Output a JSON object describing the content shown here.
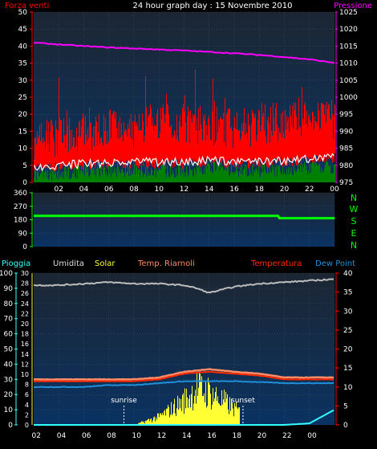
{
  "header": {
    "left_label": "Forza venti",
    "title": "24 hour graph day : 15 Novembre 2010",
    "right_label": "Pressione"
  },
  "legend": {
    "rain": "Pioggia",
    "humidity": "Umidita",
    "solar": "Solar",
    "temp2": "Temp. Riarnoli",
    "temperature": "Temperatura",
    "dewpoint": "Dew Point"
  },
  "compass": [
    "N",
    "W",
    "S",
    "E",
    "N"
  ],
  "colors": {
    "wind_gust": "#ff0000",
    "wind_avg": "#ffffff",
    "wind_low": "#008000",
    "pressure": "#ff00ff",
    "direction": "#00ff00",
    "humidity": "#bcbcbc",
    "solar": "#ffff33",
    "temperature": "#ff2a00",
    "temp2": "#ff8c66",
    "dewpoint": "#1e8fd8",
    "rain": "#33ffff",
    "panel_bg_top": "#1b2a3a",
    "panel_bg_bottom": "#0b3060"
  },
  "chart_data": [
    {
      "type": "line",
      "title": "24 hour graph day : 15 Novembre 2010",
      "x_ticks": [
        "02",
        "04",
        "06",
        "08",
        "10",
        "12",
        "14",
        "16",
        "18",
        "20",
        "22",
        "00"
      ],
      "ylabel_left": "Forza venti",
      "ylim_left": [
        0,
        50
      ],
      "yticks_left": [
        "0",
        "5",
        "10",
        "15",
        "20",
        "25",
        "30",
        "35",
        "40",
        "45",
        "50"
      ],
      "ylabel_right": "Pressione",
      "ylim_right": [
        975,
        1025
      ],
      "yticks_right": [
        "975",
        "980",
        "985",
        "990",
        "995",
        "1000",
        "1005",
        "1010",
        "1015",
        "1020",
        "1025"
      ],
      "x_hours": [
        0,
        2,
        4,
        6,
        8,
        10,
        12,
        14,
        16,
        18,
        20,
        22,
        24
      ],
      "series": [
        {
          "name": "Pressione",
          "axis": "right",
          "values": [
            1016,
            1015.5,
            1015,
            1014.6,
            1014.3,
            1014,
            1013.7,
            1013.3,
            1012.9,
            1012.4,
            1011.8,
            1011.1,
            1010.1
          ]
        },
        {
          "name": "Forza venti",
          "axis": "left",
          "gust_values": [
            12,
            13,
            14,
            16,
            15,
            17,
            17,
            16,
            15,
            16,
            18,
            19,
            18
          ],
          "avg_values": [
            4.5,
            5,
            5.5,
            5.5,
            6,
            6,
            6,
            6.5,
            6,
            6,
            6.5,
            7,
            7.5
          ],
          "low_values": [
            2,
            2,
            3,
            3,
            3,
            3,
            3,
            4,
            3,
            3,
            3,
            4,
            4
          ]
        }
      ]
    },
    {
      "type": "line",
      "ylim": [
        0,
        360
      ],
      "yticks": [
        "0",
        "90",
        "180",
        "270",
        "360"
      ],
      "x_hours": [
        0,
        19.5,
        19.6,
        24
      ],
      "series": [
        {
          "values": [
            205,
            205,
            190,
            190
          ]
        }
      ]
    },
    {
      "type": "area",
      "x_ticks": [
        "02",
        "04",
        "06",
        "08",
        "10",
        "12",
        "14",
        "16",
        "18",
        "20",
        "22",
        "00"
      ],
      "ylim_left": [
        0,
        100
      ],
      "yticks_left": [
        "0",
        "10",
        "20",
        "30",
        "40",
        "50",
        "60",
        "70",
        "80",
        "90",
        "100"
      ],
      "yticks_left_inner": [
        "0",
        "2",
        "4",
        "6",
        "8",
        "10",
        "12",
        "14",
        "16",
        "18",
        "20",
        "22",
        "24",
        "26",
        "28",
        "30"
      ],
      "ylim_right": [
        0,
        40
      ],
      "yticks_right": [
        "0",
        "5",
        "10",
        "15",
        "20",
        "25",
        "30",
        "35",
        "40"
      ],
      "annotations": [
        {
          "text": "sunrise",
          "hour": 7.2
        },
        {
          "text": "sunset",
          "hour": 16.7
        }
      ],
      "x_hours": [
        0,
        2,
        4,
        6,
        8,
        10,
        12,
        13,
        14,
        16,
        18,
        20,
        22,
        24
      ],
      "series": [
        {
          "name": "Umidita",
          "axis": "left",
          "values": [
            92,
            92,
            93,
            94,
            93,
            93,
            92,
            90,
            87,
            91,
            93,
            94,
            95,
            96
          ]
        },
        {
          "name": "Temperatura",
          "axis": "right",
          "values": [
            11.5,
            11.5,
            11.5,
            11.5,
            11.5,
            12,
            13.5,
            13.8,
            14,
            13.5,
            13,
            12,
            12,
            12
          ]
        },
        {
          "name": "Temp. Riarnoli",
          "axis": "right",
          "values": [
            12,
            12,
            12,
            12,
            12,
            12.5,
            14,
            14.3,
            14.7,
            14,
            13.5,
            12.5,
            12.5,
            12.5
          ]
        },
        {
          "name": "Dew Point",
          "axis": "right",
          "values": [
            10,
            10,
            10,
            10.5,
            10.5,
            11,
            11.5,
            11.5,
            11.5,
            11.5,
            11.3,
            11,
            11,
            11
          ]
        },
        {
          "name": "Solar",
          "axis": "left_inner",
          "sunrise_hour": 7.2,
          "sunset_hour": 16.7,
          "values": [
            0,
            0,
            0,
            0,
            0,
            2,
            6,
            9,
            8,
            4,
            0,
            0,
            0,
            0
          ]
        },
        {
          "name": "Pioggia",
          "axis": "left",
          "values": [
            0,
            0,
            0,
            0,
            0,
            0,
            0,
            0,
            0,
            0,
            0,
            0,
            1,
            10
          ]
        }
      ]
    }
  ]
}
